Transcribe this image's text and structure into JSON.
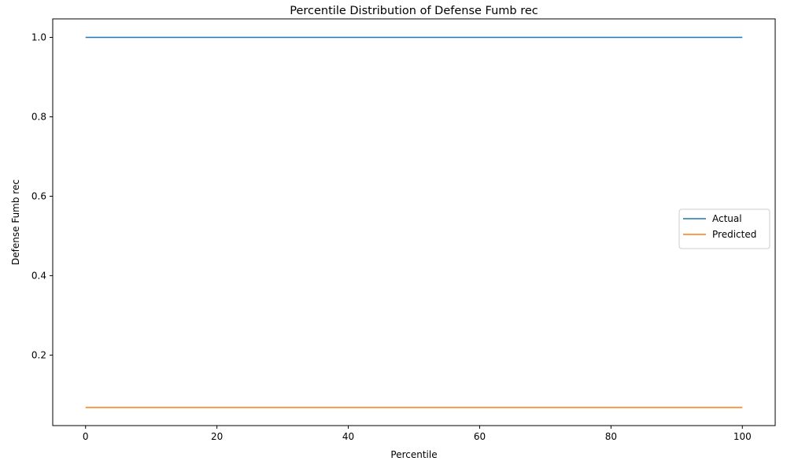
{
  "chart_data": {
    "type": "line",
    "title": "Percentile Distribution of Defense Fumb rec",
    "xlabel": "Percentile",
    "ylabel": "Defense Fumb rec",
    "xlim": [
      -5,
      105
    ],
    "ylim": [
      0.0225,
      1.0465
    ],
    "x_ticks": [
      0,
      20,
      40,
      60,
      80,
      100
    ],
    "x_tick_labels": [
      "0",
      "20",
      "40",
      "60",
      "80",
      "100"
    ],
    "y_ticks": [
      0.2,
      0.4,
      0.6,
      0.8,
      1.0
    ],
    "y_tick_labels": [
      "0.2",
      "0.4",
      "0.6",
      "0.8",
      "1.0"
    ],
    "grid": false,
    "legend": "center-right",
    "series": [
      {
        "name": "Actual",
        "color": "#1f77b4",
        "x": [
          0,
          100
        ],
        "values": [
          1.0,
          1.0
        ]
      },
      {
        "name": "Predicted",
        "color": "#ff7f0e",
        "x": [
          0,
          100
        ],
        "values": [
          0.068,
          0.068
        ]
      }
    ]
  }
}
